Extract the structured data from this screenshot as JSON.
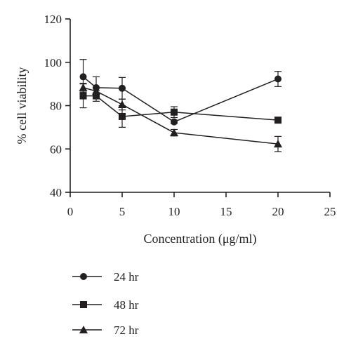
{
  "chart_data": {
    "type": "line",
    "xlabel": "Concentration (μg/ml)",
    "ylabel": "% cell viability",
    "xlim": [
      0,
      25
    ],
    "ylim": [
      40,
      120
    ],
    "x_ticks": [
      0,
      5,
      10,
      15,
      20,
      25
    ],
    "y_ticks": [
      40,
      60,
      80,
      100,
      120
    ],
    "x_tick_labels": [
      "0",
      "5",
      "10",
      "15",
      "20",
      "25"
    ],
    "y_tick_labels": [
      "40",
      "60",
      "80",
      "100",
      "120"
    ],
    "grid": false,
    "legend_position": "bottom-left",
    "x": [
      1.25,
      2.5,
      5,
      10,
      20
    ],
    "series": [
      {
        "name": "24 hr",
        "marker": "circle",
        "values": [
          93.3,
          88.3,
          88.0,
          72.5,
          92.3
        ],
        "errors": [
          8.0,
          5.0,
          5.0,
          0.8,
          3.5
        ]
      },
      {
        "name": "48 hr",
        "marker": "square",
        "values": [
          84.5,
          84.5,
          75.0,
          77.0,
          73.3
        ],
        "errors": [
          5.5,
          2.5,
          5.0,
          2.5,
          1.0
        ]
      },
      {
        "name": "72 hr",
        "marker": "triangle",
        "values": [
          88.3,
          86.7,
          80.5,
          67.5,
          62.3
        ],
        "errors": [
          2.0,
          1.5,
          2.5,
          1.5,
          3.5
        ]
      }
    ],
    "colors": {
      "line": "#231f20",
      "background": "#ffffff"
    }
  }
}
